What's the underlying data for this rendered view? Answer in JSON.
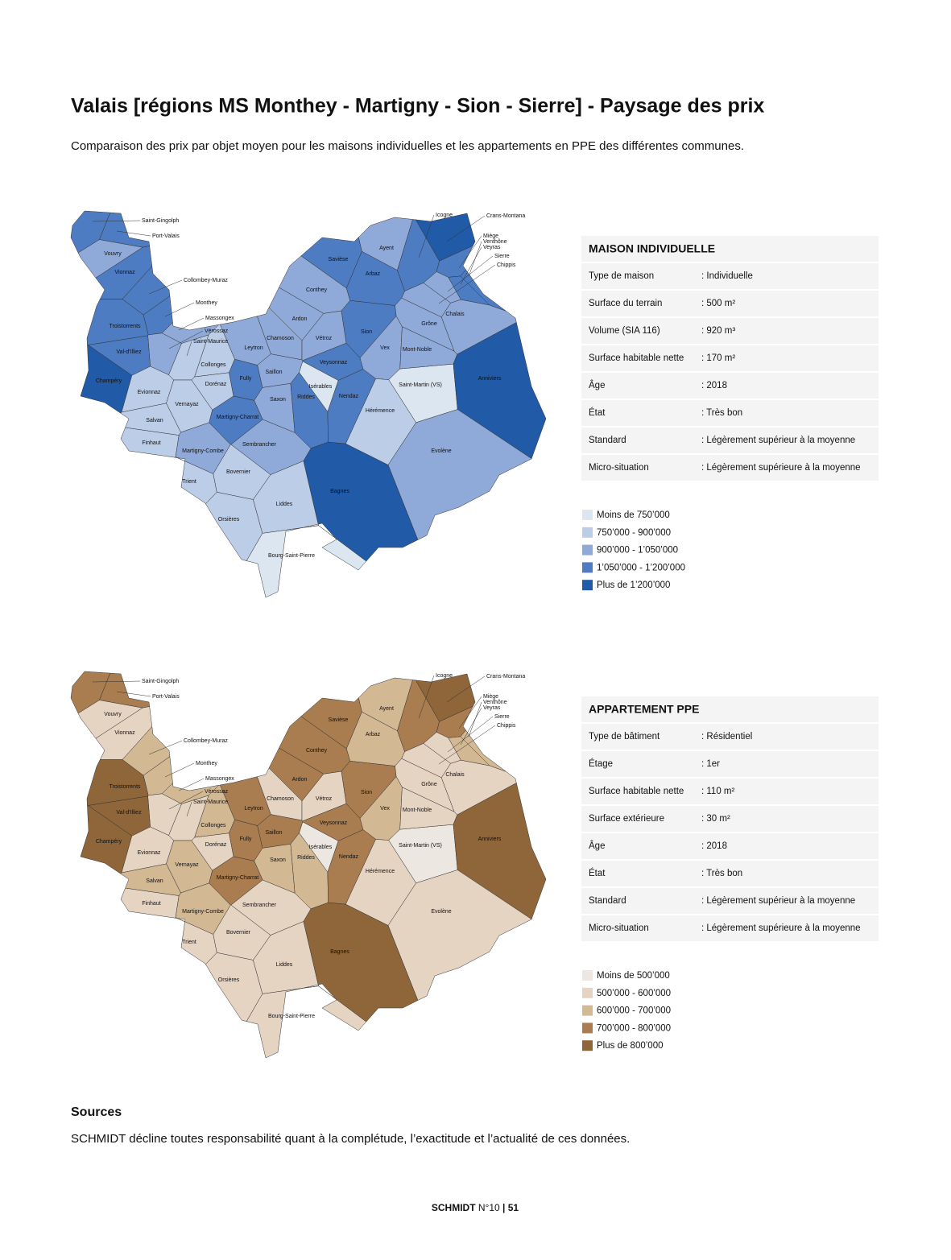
{
  "header": {
    "title": "Valais [régions MS Monthey - Martigny - Sion - Sierre] - Paysage des prix",
    "subtitle": "Comparaison des prix par objet moyen pour les maisons individuelles et les appartements en PPE des différentes communes."
  },
  "communes": [
    "Saint-Gingolph",
    "Port-Valais",
    "Vouvry",
    "Vionnaz",
    "Collombey-Muraz",
    "Monthey",
    "Massongex",
    "Vérossaz",
    "Saint-Maurice",
    "Troistorrents",
    "Val-d'Illiez",
    "Champéry",
    "Evionnaz",
    "Collonges",
    "Dorénaz",
    "Vernayaz",
    "Salvan",
    "Finhaut",
    "Martigny-Combe",
    "Trient",
    "Martigny-Charrat",
    "Fully",
    "Leytron",
    "Saillon",
    "Saxon",
    "Riddes",
    "Chamoson",
    "Ardon",
    "Vétroz",
    "Conthey",
    "Savièse",
    "Arbaz",
    "Ayent",
    "Icogne",
    "Crans-Montana",
    "Miège",
    "Venthône",
    "Veyras",
    "Sierre",
    "Chippis",
    "Sion",
    "Vex",
    "Veysonnaz",
    "Nendaz",
    "Isérables",
    "Hérémence",
    "Saint-Martin (VS)",
    "Mont-Noble",
    "Grône",
    "Chalais",
    "Anniviers",
    "Evolène",
    "Bagnes",
    "Sembrancher",
    "Bovernier",
    "Orsières",
    "Liddes",
    "Bourg-Saint-Pierre"
  ],
  "maps": [
    {
      "title": "MAISON INDIVIDUELLE",
      "rows": [
        [
          "Type de maison",
          ": Individuelle"
        ],
        [
          "Surface du terrain",
          ": 500 m²"
        ],
        [
          "Volume (SIA 116)",
          ": 920 m³"
        ],
        [
          "Surface habitable nette",
          ": 170 m²"
        ],
        [
          "Âge",
          ": 2018"
        ],
        [
          "État",
          ": Très bon"
        ],
        [
          "Standard",
          ": Légèrement supérieur à la moyenne"
        ],
        [
          "Micro-situation",
          ": Légèrement supérieure à la moyenne"
        ]
      ],
      "legend": [
        {
          "label": "Moins de 750’000",
          "color": "#dce6f1"
        },
        {
          "label": "750’000 - 900’000",
          "color": "#bccde8"
        },
        {
          "label": "900’000 - 1’050’000",
          "color": "#8fa9d8"
        },
        {
          "label": "1’050’000 - 1’200’000",
          "color": "#4d7cc2"
        },
        {
          "label": "Plus de 1’200’000",
          "color": "#215aa6"
        }
      ],
      "classes": [
        3,
        3,
        2,
        3,
        3,
        3,
        2,
        2,
        1,
        3,
        3,
        4,
        1,
        1,
        1,
        1,
        1,
        1,
        2,
        1,
        3,
        3,
        2,
        2,
        2,
        3,
        2,
        2,
        2,
        2,
        3,
        3,
        2,
        3,
        4,
        3,
        3,
        3,
        2,
        2,
        3,
        2,
        3,
        3,
        0,
        1,
        0,
        2,
        2,
        2,
        4,
        2,
        4,
        2,
        1,
        1,
        1,
        0
      ]
    },
    {
      "title": "APPARTEMENT PPE",
      "rows": [
        [
          "Type de bâtiment",
          ": Résidentiel"
        ],
        [
          "Étage",
          ": 1er"
        ],
        [
          "Surface habitable nette",
          ": 110 m²"
        ],
        [
          "Surface extérieure",
          ": 30 m²"
        ],
        [
          "Âge",
          ": 2018"
        ],
        [
          "État",
          ": Très bon"
        ],
        [
          "Standard",
          ": Légèrement supérieur à la moyenne"
        ],
        [
          "Micro-situation",
          ": Légèrement supérieure à la moyenne"
        ]
      ],
      "legend": [
        {
          "label": "Moins de 500’000",
          "color": "#ede7e2"
        },
        {
          "label": "500’000 - 600’000",
          "color": "#e6d4c3"
        },
        {
          "label": "600’000 - 700’000",
          "color": "#d3b894"
        },
        {
          "label": "700’000 - 800’000",
          "color": "#a97d4f"
        },
        {
          "label": "Plus de 800’000",
          "color": "#8f6639"
        }
      ],
      "classes": [
        3,
        3,
        1,
        1,
        2,
        2,
        2,
        1,
        1,
        4,
        4,
        4,
        1,
        2,
        1,
        2,
        2,
        1,
        2,
        1,
        3,
        3,
        3,
        3,
        2,
        2,
        1,
        3,
        1,
        3,
        3,
        2,
        2,
        3,
        4,
        3,
        2,
        2,
        1,
        1,
        3,
        2,
        3,
        3,
        0,
        1,
        0,
        1,
        1,
        1,
        4,
        1,
        4,
        1,
        1,
        1,
        1,
        1
      ]
    }
  ],
  "sources": {
    "title": "Sources",
    "text": "SCHMIDT décline toutes responsabilité quant à la complétude, l’exactitude et l’actualité de ces données."
  },
  "footer": {
    "brand": "SCHMIDT",
    "issue": "N°10",
    "separator": "|",
    "page": "51"
  }
}
